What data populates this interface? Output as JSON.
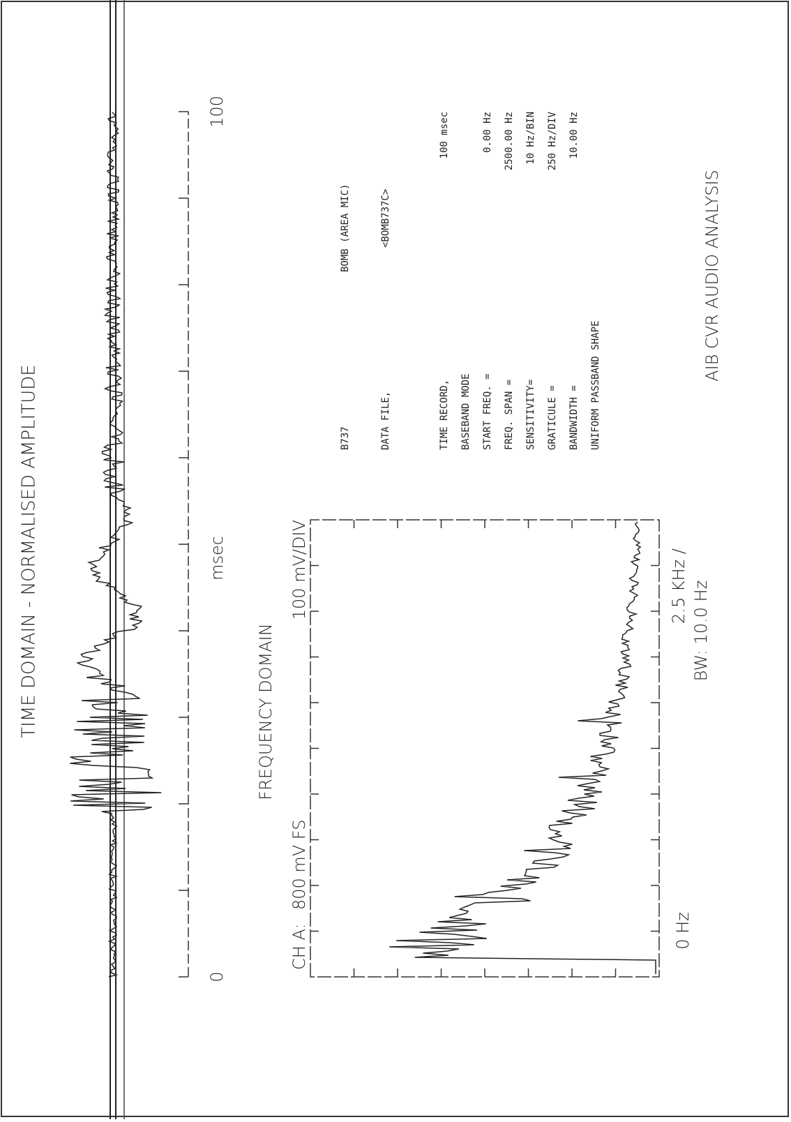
{
  "time_domain": {
    "title": "TIME DOMAIN - NORMALISED AMPLITUDE",
    "axis_start": "0",
    "axis_end": "100",
    "axis_unit": "msec"
  },
  "frequency_domain": {
    "title": "FREQUENCY DOMAIN",
    "channel": "CH A:",
    "full_scale": "800 mV FS",
    "division": "100 mV/DIV",
    "start_label": "0 Hz",
    "span_label": "2.5 KHz /",
    "bandwidth_label": "BW: 10.0 Hz"
  },
  "info": {
    "aircraft": "B737",
    "description": "BOMB (AREA MIC)",
    "data_file_label": "DATA FILE,",
    "data_file": "<BOMB737C>",
    "settings": [
      {
        "label": "TIME RECORD,",
        "value": "100 msec"
      },
      {
        "label": "BASEBAND MODE",
        "value": ""
      },
      {
        "label": "START FREQ. =",
        "value": "0.00 Hz"
      },
      {
        "label": "FREQ. SPAN  =",
        "value": "2500.00 Hz"
      },
      {
        "label": "SENSITIVITY=",
        "value": "10 Hz/BIN"
      },
      {
        "label": "GRATICULE  =",
        "value": "250 Hz/DIV"
      },
      {
        "label": "BANDWIDTH  =",
        "value": "10.00 Hz"
      },
      {
        "label": "UNIFORM PASSBAND SHAPE",
        "value": ""
      }
    ]
  },
  "footer": "AIB CVR AUDIO ANALYSIS"
}
